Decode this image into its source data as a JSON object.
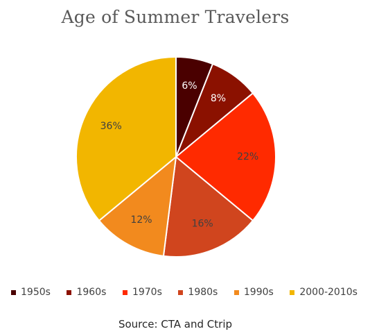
{
  "chart_data": {
    "type": "pie",
    "title": "Age of Summer Travelers",
    "categories": [
      "1950s",
      "1960s",
      "1970s",
      "1980s",
      "1990s",
      "2000-2010s"
    ],
    "values": [
      6,
      8,
      22,
      16,
      12,
      36
    ],
    "labels": [
      "6%",
      "8%",
      "22%",
      "16%",
      "12%",
      "36%"
    ],
    "colors": [
      "#4a0000",
      "#8b1100",
      "#ff2a00",
      "#d0451e",
      "#f28a1e",
      "#f2b600"
    ],
    "label_colors": [
      "#ffffff",
      "#ffffff",
      "#404040",
      "#404040",
      "#404040",
      "#404040"
    ],
    "legend_position": "bottom",
    "source": "Source: CTA and Ctrip"
  }
}
